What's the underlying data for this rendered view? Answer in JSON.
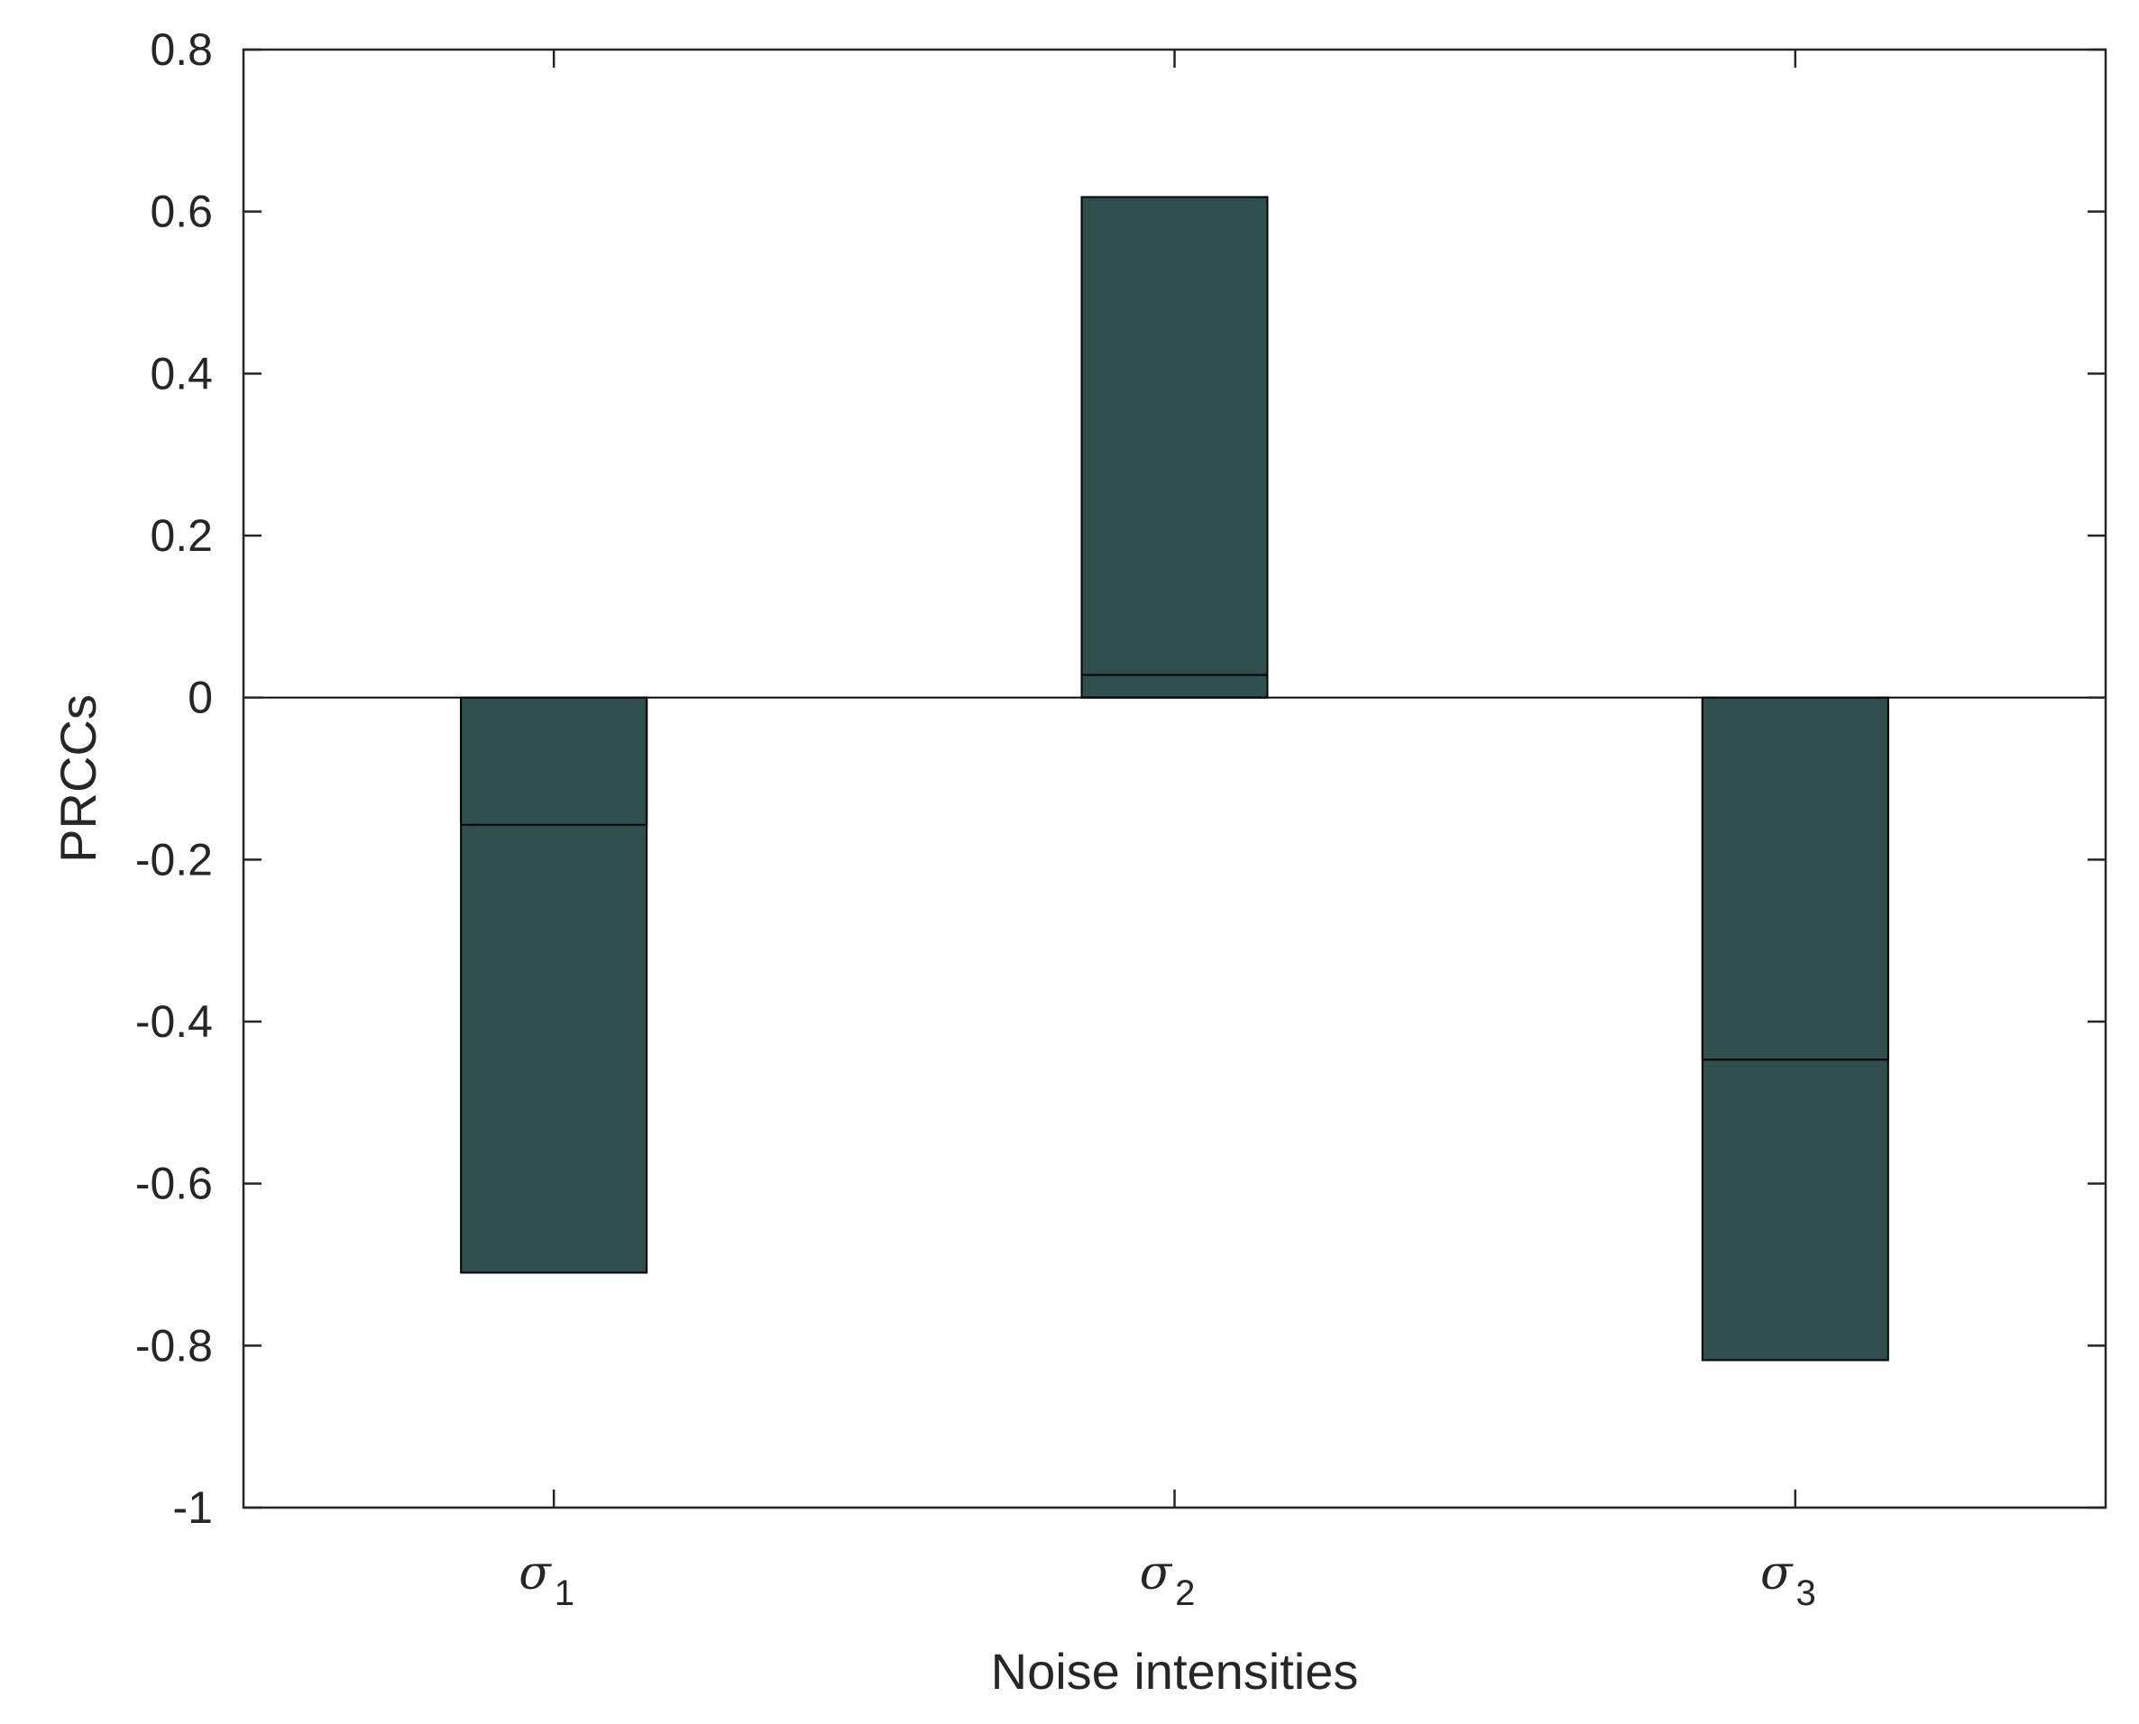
{
  "chart_data": {
    "type": "bar",
    "title": "",
    "xlabel": "Noise intensities",
    "ylabel": "PRCCs",
    "categories": [
      {
        "base": "σ",
        "sub": "1"
      },
      {
        "base": "σ",
        "sub": "2"
      },
      {
        "base": "σ",
        "sub": "3"
      }
    ],
    "series": [
      {
        "values": [
          -0.71,
          0.618,
          -0.818
        ]
      },
      {
        "values": [
          -0.157,
          0.028,
          -0.447
        ]
      }
    ],
    "ylim": [
      -1,
      0.8
    ],
    "yticks": [
      -1,
      -0.8,
      -0.6,
      -0.4,
      -0.2,
      0,
      0.2,
      0.4,
      0.6,
      0.8
    ],
    "ytick_labels": [
      "-1",
      "-0.8",
      "-0.6",
      "-0.4",
      "-0.2",
      "0",
      "0.2",
      "0.4",
      "0.6",
      "0.8"
    ],
    "grid": false,
    "legend": "none",
    "bar_color": "#2f4f4f",
    "edge_color": "#000000"
  }
}
